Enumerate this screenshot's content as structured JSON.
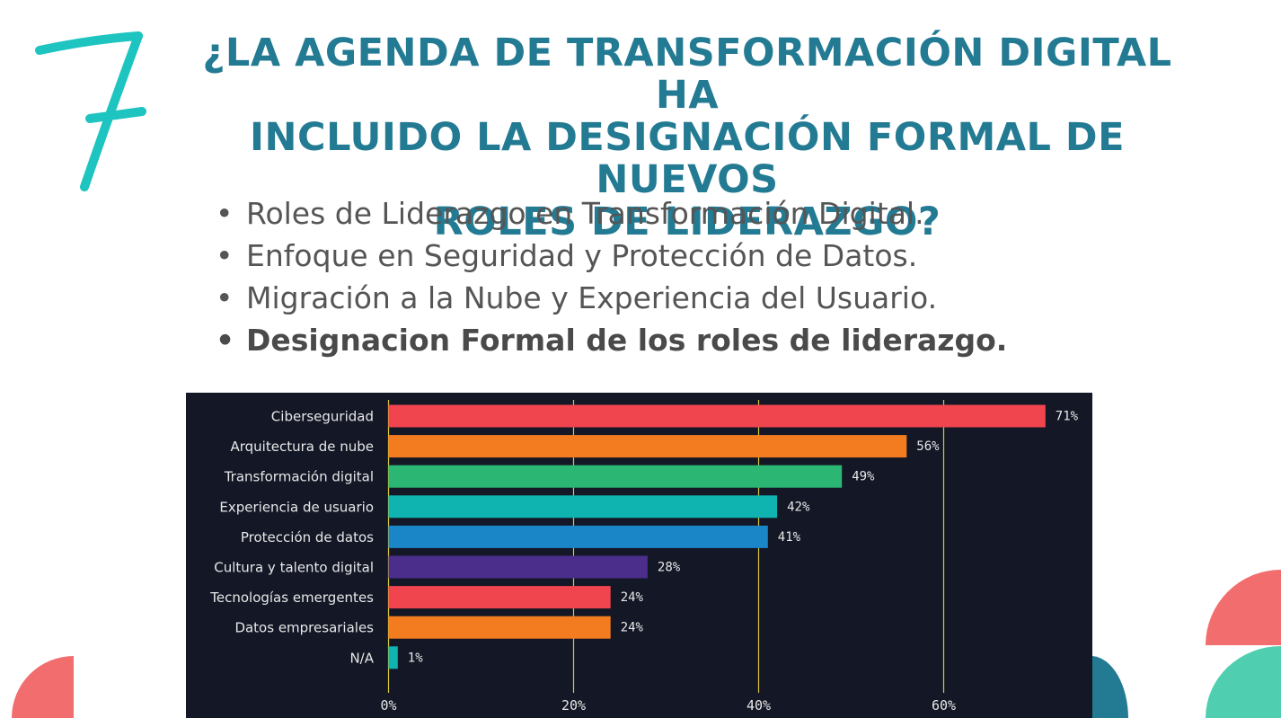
{
  "slide": {
    "number": "7",
    "title_lines": [
      "¿LA AGENDA DE TRANSFORMACIÓN DIGITAL HA",
      "INCLUIDO LA DESIGNACIÓN FORMAL DE NUEVOS",
      "ROLES DE LIDERAZGO?"
    ],
    "bullets": [
      "Roles de Liderazgo en Transformación Digital.",
      "Enfoque en Seguridad y Protección de Datos.",
      "Migración a la Nube y Experiencia del Usuario.",
      "Designacion Formal de los roles de liderazgo."
    ],
    "colors": {
      "title": "#237a93",
      "number": "#1dc4c0",
      "deco_coral": "#f26d6d",
      "deco_teal": "#4fcfb0",
      "deco_blue": "#237a93",
      "chart_bg": "#131726",
      "grid": "#d9c640"
    }
  },
  "chart_data": {
    "type": "bar",
    "orientation": "horizontal",
    "categories": [
      "Ciberseguridad",
      "Arquitectura de nube",
      "Transformación digital",
      "Experiencia de usuario",
      "Protección de datos",
      "Cultura y talento digital",
      "Tecnologías emergentes",
      "Datos empresariales",
      "N/A"
    ],
    "values": [
      71,
      56,
      49,
      42,
      41,
      28,
      24,
      24,
      1
    ],
    "value_labels": [
      "71%",
      "56%",
      "49%",
      "42%",
      "41%",
      "28%",
      "24%",
      "24%",
      "1%"
    ],
    "colors": [
      "#f0444e",
      "#f47c20",
      "#2bb673",
      "#0fb3b0",
      "#1a86c8",
      "#4b2d8c",
      "#f0444e",
      "#f47c20",
      "#0fb3b0"
    ],
    "xlim": [
      0,
      75
    ],
    "xticks": [
      0,
      20,
      40,
      60
    ],
    "xtick_labels": [
      "0%",
      "20%",
      "40%",
      "60%"
    ],
    "grid": true,
    "title": "",
    "xlabel": "",
    "ylabel": ""
  }
}
